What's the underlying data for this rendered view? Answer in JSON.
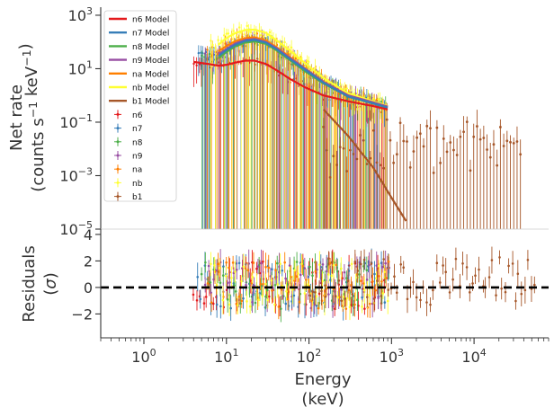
{
  "chart_data": [
    {
      "type": "scatter",
      "panel": "count-spectrum",
      "xscale": "log",
      "yscale": "log",
      "xlim": [
        0.3,
        80000
      ],
      "ylim": [
        1e-05,
        2000
      ],
      "ylabel_lines": [
        "Net rate",
        "(counts s$^{-1}$ keV$^{-1}$)"
      ],
      "ytick_labels": [
        {
          "base": "10",
          "exp": "3",
          "value": 1000
        },
        {
          "base": "10",
          "exp": "1",
          "value": 10
        },
        {
          "base": "10",
          "exp": "−1",
          "value": 0.1
        },
        {
          "base": "10",
          "exp": "−3",
          "value": 0.001
        },
        {
          "base": "10",
          "exp": "−5",
          "value": 1e-05
        }
      ],
      "legend_position": "top-left",
      "legend": {
        "models": [
          {
            "label": "n6 Model",
            "color": "#e41a1c"
          },
          {
            "label": "n7 Model",
            "color": "#377eb8"
          },
          {
            "label": "n8 Model",
            "color": "#4daf4a"
          },
          {
            "label": "n9 Model",
            "color": "#984ea3"
          },
          {
            "label": "na Model",
            "color": "#ff7f00"
          },
          {
            "label": "nb Model",
            "color": "#ffff33"
          },
          {
            "label": "b1 Model",
            "color": "#a65628"
          }
        ],
        "data": [
          {
            "label": "n6",
            "color": "#e41a1c"
          },
          {
            "label": "n7",
            "color": "#377eb8"
          },
          {
            "label": "n8",
            "color": "#4daf4a"
          },
          {
            "label": "n9",
            "color": "#984ea3"
          },
          {
            "label": "na",
            "color": "#ff7f00"
          },
          {
            "label": "nb",
            "color": "#ffff33"
          },
          {
            "label": "b1",
            "color": "#a65628"
          }
        ]
      },
      "series": [
        {
          "name": "n6 Model",
          "color": "#e41a1c",
          "x": [
            4,
            6,
            8,
            10,
            13,
            17,
            22,
            30,
            40,
            60,
            90,
            150,
            300,
            600,
            900
          ],
          "y": [
            18,
            15,
            13,
            14,
            17,
            20,
            20,
            15,
            9,
            4,
            2,
            1,
            0.6,
            0.4,
            0.3
          ]
        },
        {
          "name": "n7 Model",
          "color": "#377eb8",
          "x": [
            8,
            10,
            13,
            17,
            22,
            30,
            40,
            60,
            90,
            150,
            300,
            600,
            900
          ],
          "y": [
            30,
            50,
            80,
            110,
            120,
            95,
            55,
            22,
            9,
            3,
            0.9,
            0.5,
            0.35
          ]
        },
        {
          "name": "n8 Model",
          "color": "#4daf4a",
          "x": [
            8,
            10,
            13,
            17,
            22,
            30,
            40,
            60,
            90,
            150,
            300,
            600,
            900
          ],
          "y": [
            25,
            42,
            70,
            95,
            105,
            85,
            50,
            20,
            8,
            2.8,
            0.9,
            0.5,
            0.35
          ]
        },
        {
          "name": "n9 Model",
          "color": "#984ea3",
          "x": [
            8,
            10,
            13,
            17,
            22,
            30,
            40,
            60,
            90,
            150,
            300,
            600,
            900
          ],
          "y": [
            35,
            55,
            90,
            120,
            130,
            100,
            60,
            24,
            10,
            3.2,
            1,
            0.55,
            0.38
          ]
        },
        {
          "name": "na Model",
          "color": "#ff7f00",
          "x": [
            8,
            10,
            13,
            17,
            22,
            30,
            40,
            60,
            90,
            150,
            300,
            600,
            900
          ],
          "y": [
            45,
            70,
            110,
            140,
            150,
            115,
            65,
            26,
            10,
            3.3,
            1,
            0.55,
            0.38
          ]
        },
        {
          "name": "nb Model",
          "color": "#ffff33",
          "x": [
            8,
            10,
            13,
            17,
            22,
            30,
            40,
            60,
            90,
            150,
            300,
            600,
            900
          ],
          "y": [
            80,
            140,
            220,
            280,
            290,
            220,
            120,
            45,
            16,
            4.5,
            1.2,
            0.6,
            0.4
          ]
        },
        {
          "name": "b1 Model",
          "color": "#a65628",
          "x": [
            150,
            300,
            600,
            1000,
            1500
          ],
          "y": [
            0.3,
            0.03,
            0.002,
            0.00015,
            2e-05
          ]
        }
      ]
    },
    {
      "type": "scatter",
      "panel": "residuals",
      "xscale": "log",
      "xlim": [
        0.3,
        80000
      ],
      "ylim": [
        -3.8,
        4.4
      ],
      "ylabel_lines": [
        "Residuals",
        "($\\sigma$)"
      ],
      "ytick_labels": [
        "4",
        "2",
        "0",
        "−2"
      ],
      "yticks": [
        4,
        2,
        0,
        -2
      ],
      "xlabel_lines": [
        "Energy",
        "(keV)"
      ],
      "xtick_labels": [
        {
          "base": "10",
          "exp": "0",
          "value": 1
        },
        {
          "base": "10",
          "exp": "1",
          "value": 10
        },
        {
          "base": "10",
          "exp": "2",
          "value": 100
        },
        {
          "base": "10",
          "exp": "3",
          "value": 1000
        },
        {
          "base": "10",
          "exp": "4",
          "value": 10000
        }
      ],
      "reference_line": {
        "y": 0,
        "style": "dashed",
        "color": "#000000"
      }
    }
  ]
}
